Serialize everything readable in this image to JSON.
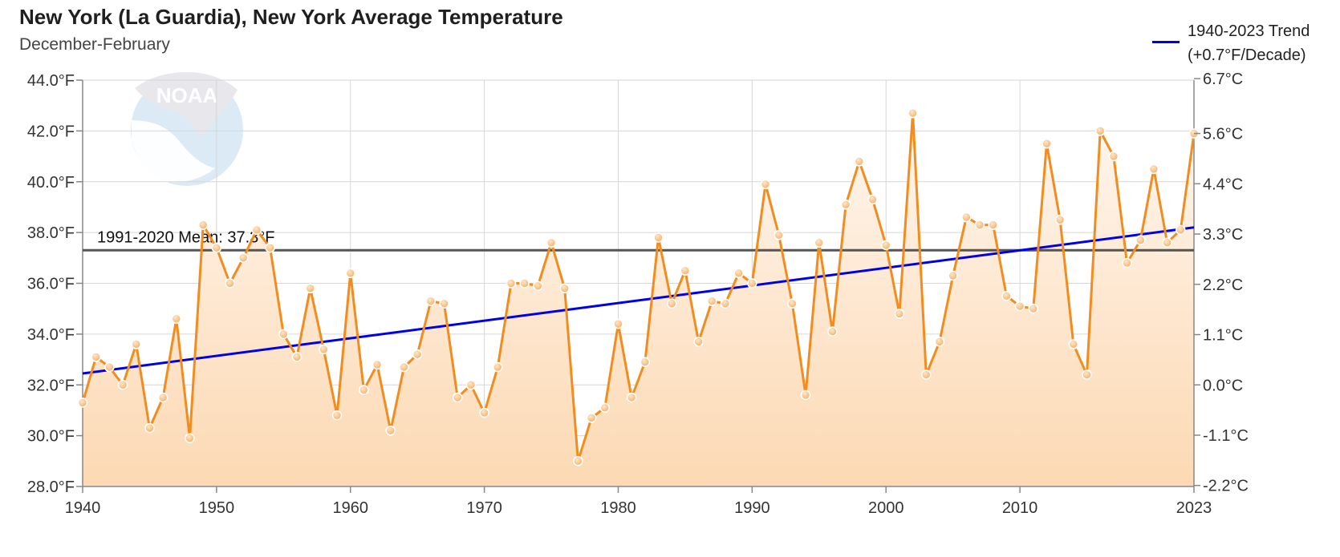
{
  "chart_data": {
    "type": "line",
    "title": "New York (La Guardia), New York Average Temperature",
    "subtitle": "December-February",
    "x": [
      1940,
      1941,
      1942,
      1943,
      1944,
      1945,
      1946,
      1947,
      1948,
      1949,
      1950,
      1951,
      1952,
      1953,
      1954,
      1955,
      1956,
      1957,
      1958,
      1959,
      1960,
      1961,
      1962,
      1963,
      1964,
      1965,
      1966,
      1967,
      1968,
      1969,
      1970,
      1971,
      1972,
      1973,
      1974,
      1975,
      1976,
      1977,
      1978,
      1979,
      1980,
      1981,
      1982,
      1983,
      1984,
      1985,
      1986,
      1987,
      1988,
      1989,
      1990,
      1991,
      1992,
      1993,
      1994,
      1995,
      1996,
      1997,
      1998,
      1999,
      2000,
      2001,
      2002,
      2003,
      2004,
      2005,
      2006,
      2007,
      2008,
      2009,
      2010,
      2011,
      2012,
      2013,
      2014,
      2015,
      2016,
      2017,
      2018,
      2019,
      2020,
      2021,
      2022,
      2023
    ],
    "series": [
      {
        "values": [
          31.3,
          33.1,
          32.7,
          32.0,
          33.6,
          30.3,
          31.5,
          34.6,
          29.9,
          38.3,
          37.4,
          36.0,
          37.0,
          38.1,
          37.4,
          34.0,
          33.1,
          35.8,
          33.4,
          30.8,
          36.4,
          31.8,
          32.8,
          30.2,
          32.7,
          33.2,
          35.3,
          35.2,
          31.5,
          32.0,
          30.9,
          32.7,
          36.0,
          36.0,
          35.9,
          37.6,
          35.8,
          29.0,
          30.7,
          31.1,
          34.4,
          31.5,
          32.9,
          37.8,
          35.2,
          36.5,
          33.7,
          35.3,
          35.2,
          36.4,
          36.0,
          39.9,
          37.9,
          35.2,
          31.6,
          37.6,
          34.1,
          39.1,
          40.8,
          39.3,
          37.5,
          34.8,
          42.7,
          32.4,
          33.7,
          36.3,
          38.6,
          38.3,
          38.3,
          35.5,
          35.1,
          35.0,
          41.5,
          38.5,
          33.6,
          32.4,
          42.0,
          41.0,
          36.8,
          37.7,
          40.5,
          37.6,
          38.1,
          41.9
        ],
        "color": "#f28c1e",
        "fill_color": "#fcd3a8"
      }
    ],
    "trend": {
      "label_line1": "1940-2023 Trend",
      "label_line2": "(+0.7°F/Decade)",
      "start": [
        1940,
        32.45
      ],
      "end": [
        2023,
        38.2
      ],
      "color": "#0000e6"
    },
    "mean": {
      "label": "1991-2020 Mean: 37.3°F",
      "value": 37.3,
      "color": "#555555"
    },
    "xlim": [
      1940,
      2023
    ],
    "ylim": [
      28,
      44
    ],
    "x_ticks": [
      1940,
      1950,
      1960,
      1970,
      1980,
      1990,
      2000,
      2010,
      2023
    ],
    "x_tick_labels": [
      "1940",
      "1950",
      "1960",
      "1970",
      "1980",
      "1990",
      "2000",
      "2010",
      "2023"
    ],
    "y_ticks": [
      28,
      30,
      32,
      34,
      36,
      38,
      40,
      42,
      44
    ],
    "y_tick_labels": [
      "28.0°F",
      "30.0°F",
      "32.0°F",
      "34.0°F",
      "36.0°F",
      "38.0°F",
      "40.0°F",
      "42.0°F",
      "44.0°F"
    ],
    "y2_ticks": [
      28.04,
      30.02,
      32.0,
      33.98,
      35.96,
      37.94,
      39.92,
      41.9,
      44.06
    ],
    "y2_tick_labels": [
      "-2.2°C",
      "-1.1°C",
      "0.0°C",
      "1.1°C",
      "2.2°C",
      "3.3°C",
      "4.4°C",
      "5.6°C",
      "6.7°C"
    ],
    "grid": true,
    "legend_position": "top-right"
  },
  "logo": {
    "text": "NOAA"
  }
}
